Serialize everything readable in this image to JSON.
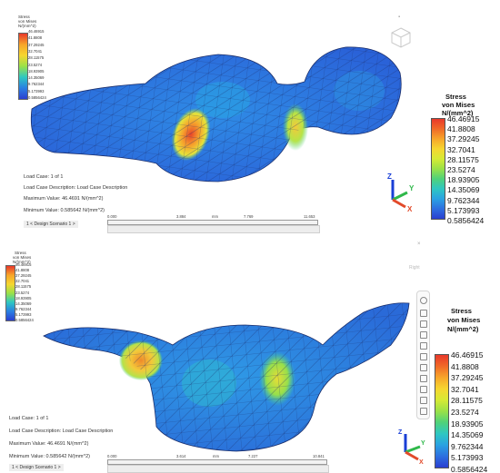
{
  "legend": {
    "small_title_line1": "Stress",
    "small_title_line2": "von Mises",
    "small_title_line3": "N/(mm^2)",
    "big_title_line1": "Stress",
    "big_title_line2": "von Mises",
    "big_title_line3": "N/(mm^2)",
    "values": [
      "46.46915",
      "41.8808",
      "37.29245",
      "32.7041",
      "28.11575",
      "23.5274",
      "18.93905",
      "14.35069",
      "9.762344",
      "5.173993",
      "0.5856424"
    ],
    "colors": [
      "#e8382a",
      "#f06a28",
      "#f7a52a",
      "#f6d630",
      "#d6ea35",
      "#9ae148",
      "#4fd27a",
      "#2ec7c2",
      "#2aa2e2",
      "#2d6fe0",
      "#2a3fd0"
    ]
  },
  "panel1": {
    "load_case": "Load Case:   1 of 1",
    "description": "Load Case Description:   Load Case Description",
    "max_value": "Maximum Value:  46.4691 N/(mm^2)",
    "min_value": "Minimum Value:  0.585642 N/(mm^2)",
    "scenario_tab": "1 < Design Scenario 1 >",
    "ruler_labels": [
      "0.000",
      "3.884",
      "mm",
      "7.769",
      "11.653"
    ]
  },
  "panel2": {
    "load_case": "Load Case:   1 of 1",
    "description": "Load Case Description:   Load Case Description",
    "max_value": "Maximum Value:  46.4691 N/(mm^2)",
    "min_value": "Minimum Value:  0.585642 N/(mm^2)",
    "scenario_tab": "1 < Design Scenario 1 >",
    "ruler_labels": [
      "0.000",
      "3.614",
      "mm",
      "7.227",
      "10.841"
    ],
    "ghost_label": "Right"
  },
  "axes": {
    "z": "Z",
    "y": "Y",
    "x": "X"
  },
  "icons": [
    "view-cube-icon",
    "axis-triad-icon",
    "nav-toolbar-icon",
    "window-close-icon"
  ]
}
